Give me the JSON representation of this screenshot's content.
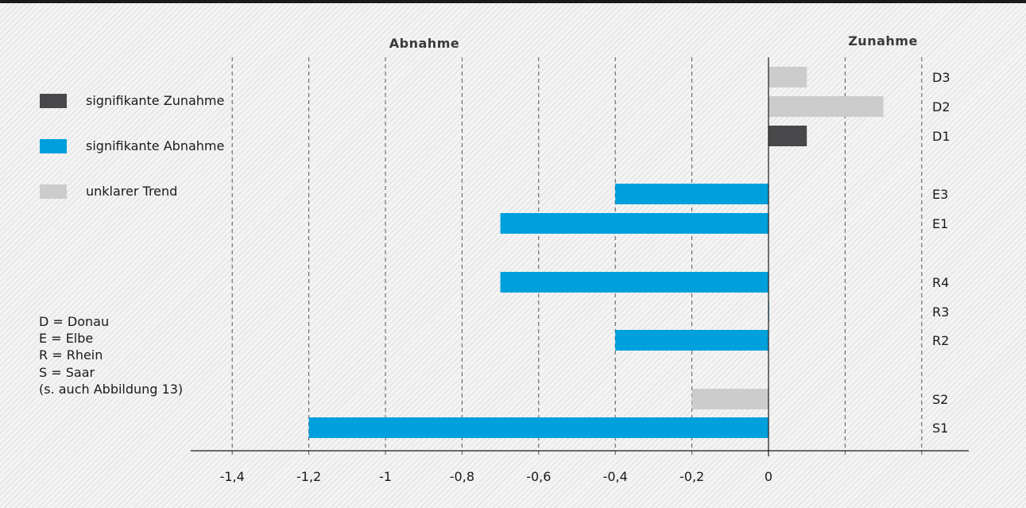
{
  "colors": {
    "significant_increase": "#48484a",
    "significant_decrease": "#00a0dc",
    "unclear_trend": "#cccccc"
  },
  "legend": [
    {
      "label": "signifikante Zunahme",
      "color_key": "significant_increase"
    },
    {
      "label": "signifikante Abnahme",
      "color_key": "significant_decrease"
    },
    {
      "label": "unklarer Trend",
      "color_key": "unclear_trend"
    }
  ],
  "abbreviations": [
    "D = Donau",
    "E = Elbe",
    "R = Rhein",
    "S = Saar",
    "(s. auch Abbildung 13)"
  ],
  "chart_data": {
    "type": "bar",
    "orientation": "horizontal",
    "title": "",
    "xlabel": "",
    "ylabel": "",
    "xlim": [
      -1.5,
      0.4
    ],
    "grid": true,
    "legend_position": "left",
    "region_labels": {
      "left": "Abnahme",
      "right": "Zunahme"
    },
    "tick_values": [
      -1.4,
      -1.2,
      -1,
      -0.8,
      -0.6,
      -0.4,
      -0.2,
      0
    ],
    "tick_labels": [
      "-1,4",
      "-1,2",
      "-1",
      "-0,8",
      "-0,6",
      "-0,4",
      "-0,2",
      "0"
    ],
    "categories": [
      "D3",
      "D2",
      "D1",
      "E3",
      "E1",
      "R4",
      "R3",
      "R2",
      "S2",
      "S1"
    ],
    "values": [
      0.1,
      0.3,
      0.1,
      -0.4,
      -0.7,
      -0.7,
      0,
      -0.4,
      -0.2,
      -1.2
    ],
    "trend": [
      "unclear_trend",
      "unclear_trend",
      "significant_increase",
      "significant_decrease",
      "significant_decrease",
      "significant_decrease",
      "significant_decrease",
      "significant_decrease",
      "unclear_trend",
      "significant_decrease"
    ]
  }
}
